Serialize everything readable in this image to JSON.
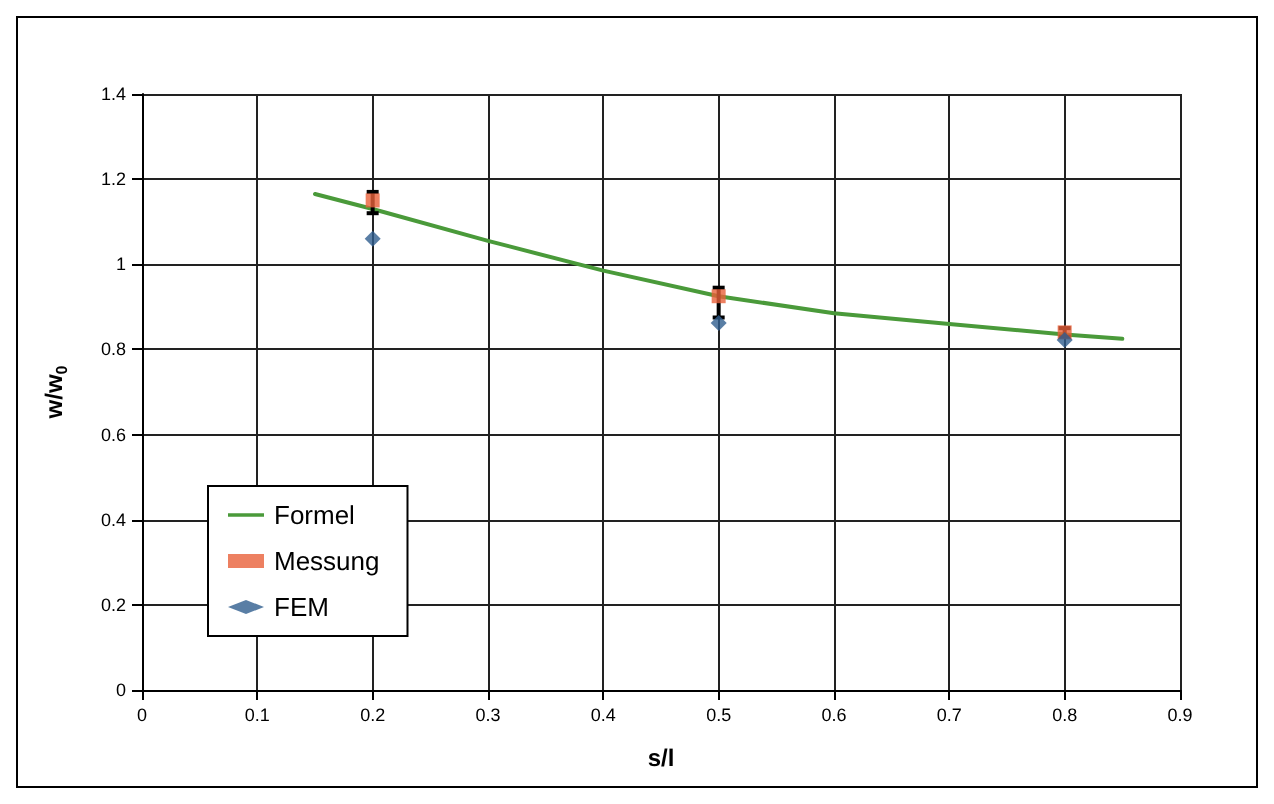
{
  "chart_data": {
    "type": "line",
    "xlabel": "s/l",
    "ylabel": "w/w$_{0}$",
    "xlim": [
      0,
      0.9
    ],
    "xticks": [
      0,
      0.1,
      0.2,
      0.3,
      0.4,
      0.5,
      0.6,
      0.7,
      0.8,
      0.9
    ],
    "ylim": [
      0,
      1.4
    ],
    "yticks": [
      0,
      0.2,
      0.4,
      0.6,
      0.8,
      1,
      1.2,
      1.4
    ],
    "grid": true,
    "legend": "bottom left",
    "series": [
      {
        "name": "Formel",
        "type": "line",
        "color": "#4a9a3a",
        "marker": "none",
        "line_style": "solid",
        "x": [
          0.15,
          0.2,
          0.3,
          0.4,
          0.5,
          0.6,
          0.7,
          0.8,
          0.85
        ],
        "values": [
          1.165,
          1.13,
          1.055,
          0.985,
          0.925,
          0.885,
          0.86,
          0.835,
          0.825
        ]
      },
      {
        "name": "Messung",
        "type": "scatter",
        "color": "#e8603a",
        "marker": "square",
        "x": [
          0.2,
          0.5,
          0.8
        ],
        "values": [
          1.15,
          0.925,
          0.84
        ],
        "errors": [
          [
            1.12,
            1.17
          ],
          [
            0.875,
            0.945
          ],
          [
            0.83,
            0.85
          ]
        ]
      },
      {
        "name": "FEM",
        "type": "scatter",
        "color": "#2f5e8e",
        "marker": "diamond",
        "x": [
          0.2,
          0.5,
          0.8
        ],
        "values": [
          1.06,
          0.862,
          0.822
        ]
      }
    ]
  }
}
